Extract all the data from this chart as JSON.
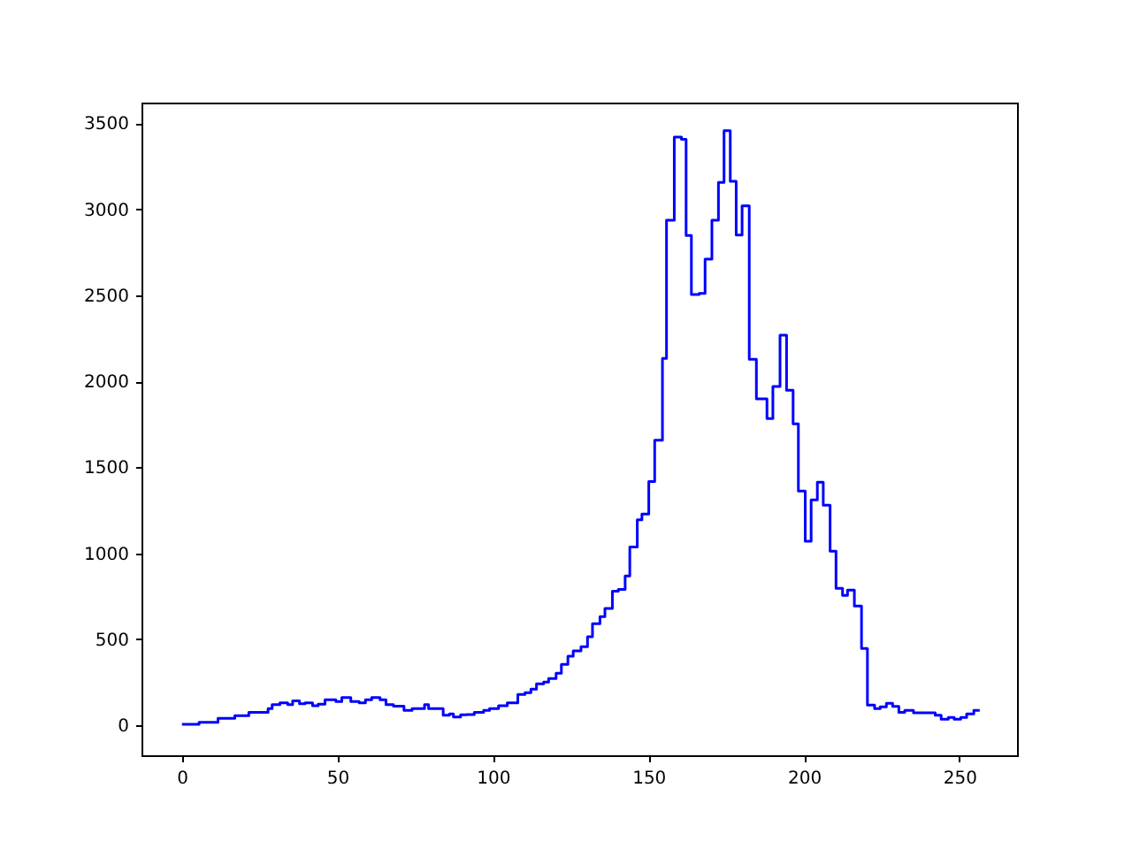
{
  "chart_data": {
    "type": "step",
    "x": [
      0,
      5.5,
      11.6,
      17,
      21.5,
      27.7,
      29,
      31.5,
      34,
      35.6,
      37.8,
      39.6,
      42,
      43.8,
      46,
      49.5,
      51.4,
      54.3,
      57,
      59,
      61,
      63.7,
      65.6,
      68,
      71.4,
      74,
      78,
      79.3,
      81.8,
      84,
      86,
      87.3,
      89.6,
      91.5,
      94,
      97,
      98.9,
      101.8,
      104.6,
      108,
      110.3,
      112.2,
      114,
      116.3,
      117.9,
      120.3,
      122,
      124.1,
      125.8,
      128.3,
      130.4,
      132,
      134.4,
      136,
      138.4,
      140.3,
      142.5,
      144,
      146.4,
      147.9,
      150.1,
      152,
      154.5,
      155.8,
      158.3,
      160.6,
      162.1,
      163.8,
      166.3,
      168.2,
      170.4,
      172.5,
      174.3,
      176.3,
      178.2,
      180.1,
      182.4,
      184.7,
      188.1,
      190,
      192.3,
      194.4,
      196.5,
      198.2,
      200.4,
      202.3,
      204.3,
      206.2,
      208.4,
      210.3,
      212.4,
      214,
      216.2,
      218.5,
      220.4,
      222.7,
      224.5,
      226.5,
      228.5,
      230.5,
      232.4,
      235.2,
      242.2,
      244.1,
      246.4,
      248.3,
      250.4,
      252.3,
      254.6,
      256.5
    ],
    "series": [
      {
        "color": "#0000ff",
        "values": [
          5,
          17,
          40,
          55,
          75,
          96,
          120,
          130,
          120,
          141,
          125,
          130,
          113,
          122,
          148,
          137,
          161,
          137,
          130,
          148,
          161,
          148,
          120,
          110,
          86,
          96,
          120,
          96,
          96,
          58,
          65,
          48,
          60,
          62,
          75,
          86,
          96,
          113,
          130,
          178,
          189,
          209,
          240,
          250,
          271,
          302,
          353,
          401,
          432,
          456,
          514,
          590,
          631,
          679,
          779,
          789,
          868,
          1036,
          1194,
          1228,
          1417,
          1657,
          2133,
          2936,
          3419,
          3406,
          2847,
          2504,
          2511,
          2710,
          2936,
          3156,
          3457,
          3162,
          2850,
          3020,
          2127,
          1897,
          1783,
          1969,
          2267,
          1948,
          1752,
          1361,
          1070,
          1310,
          1413,
          1279,
          1012,
          796,
          754,
          785,
          693,
          446,
          117,
          96,
          106,
          127,
          109,
          75,
          86,
          72,
          58,
          34,
          45,
          34,
          45,
          65,
          86,
          86
        ]
      }
    ],
    "xlim": [
      -13,
      268.5
    ],
    "ylim": [
      -175,
      3620
    ],
    "xticks": [
      0,
      50,
      100,
      150,
      200,
      250
    ],
    "yticks": [
      0,
      500,
      1000,
      1500,
      2000,
      2500,
      3000,
      3500
    ],
    "grid": false
  }
}
